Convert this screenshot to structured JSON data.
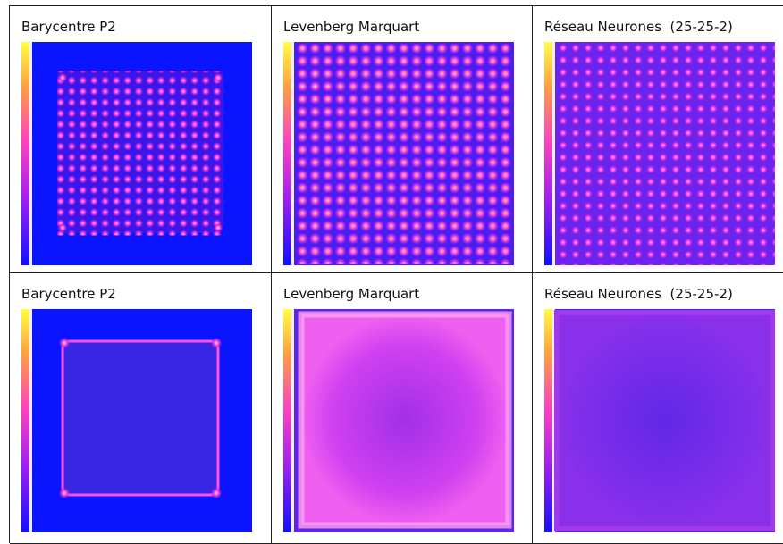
{
  "table": {
    "rows": [
      [
        "Barycentre P2",
        "Levenberg Marquart",
        "Réseau Neurones  (25-25-2)"
      ],
      [
        "Barycentre P2",
        "Levenberg Marquart",
        "Réseau Neurones  (25-25-2)"
      ]
    ]
  }
}
